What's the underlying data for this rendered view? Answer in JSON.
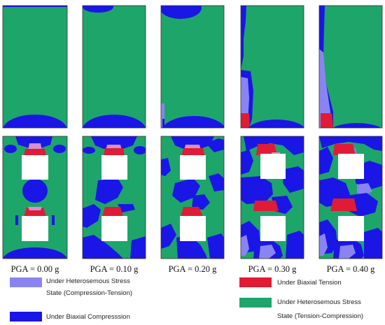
{
  "colors": {
    "green": "#1ea56a",
    "blue": "#1a16e6",
    "light_blue": "#8a84f2",
    "red": "#e01b35",
    "pink": "#d78fd0",
    "opening": "#ffffff",
    "frame": "#333333"
  },
  "columns": [
    {
      "pga_label": "PGA = 0.00 g"
    },
    {
      "pga_label": "PGA = 0.10 g"
    },
    {
      "pga_label": "PGA = 0.20 g"
    },
    {
      "pga_label": "PGA = 0.30 g"
    },
    {
      "pga_label": "PGA = 0.40 g"
    }
  ],
  "legend": [
    {
      "color_key": "light_blue",
      "line1": "Under Heterosemous Stress",
      "line2": "State (Compression-Tension)"
    },
    {
      "color_key": "blue",
      "line1": "Under Biaxial Compresssion",
      "line2": ""
    },
    {
      "color_key": "red",
      "line1": "Under Biaxial Tension",
      "line2": ""
    },
    {
      "color_key": "green",
      "line1": "Under Heterosemous Stress",
      "line2": "State (Tension-Compression)"
    }
  ]
}
